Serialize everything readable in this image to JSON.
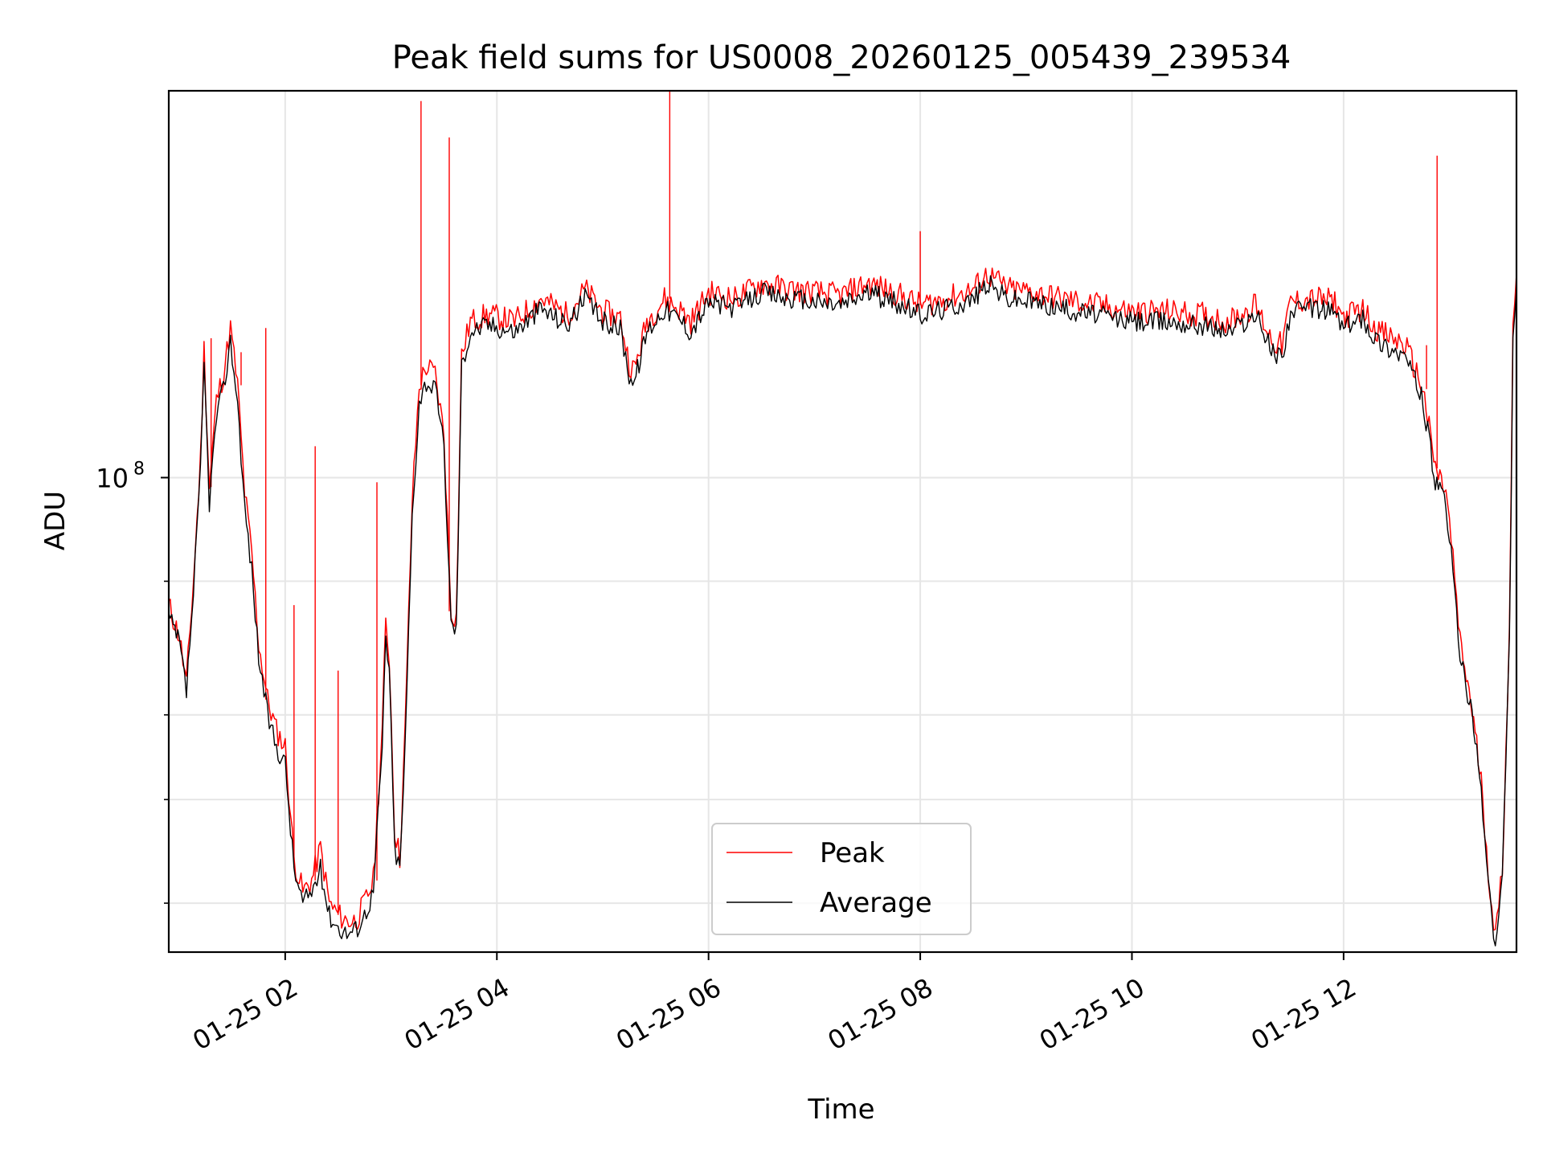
{
  "chart_data": {
    "type": "line",
    "title": "Peak field sums for US0008_20260125_005439_239534",
    "xlabel": "Time",
    "ylabel": "ADU",
    "x_scale": "time",
    "y_scale": "log",
    "xlim": [
      "2026-01-25 00:54",
      "2026-01-25 13:38"
    ],
    "ylim": [
      36000000,
      230000000
    ],
    "x_ticks": [
      {
        "value": "2026-01-25 02:00",
        "label": "01-25 02"
      },
      {
        "value": "2026-01-25 04:00",
        "label": "01-25 04"
      },
      {
        "value": "2026-01-25 06:00",
        "label": "01-25 06"
      },
      {
        "value": "2026-01-25 08:00",
        "label": "01-25 08"
      },
      {
        "value": "2026-01-25 10:00",
        "label": "01-25 10"
      },
      {
        "value": "2026-01-25 12:00",
        "label": "01-25 12"
      }
    ],
    "y_major_ticks": [
      {
        "value": 100000000,
        "label_base": "10",
        "label_exp": "8"
      }
    ],
    "y_minor_ticks": [
      40000000,
      50000000,
      60000000,
      80000000
    ],
    "grid": true,
    "legend_position": "lower center",
    "series": [
      {
        "name": "Peak",
        "color": "#ff0000",
        "points": [
          [
            "2026-01-25 00:54",
            76000000
          ],
          [
            "2026-01-25 01:00",
            71000000
          ],
          [
            "2026-01-25 01:04",
            64000000
          ],
          [
            "2026-01-25 01:08",
            80000000
          ],
          [
            "2026-01-25 01:12",
            104000000
          ],
          [
            "2026-01-25 01:14",
            132000000
          ],
          [
            "2026-01-25 01:17",
            98000000
          ],
          [
            "2026-01-25 01:21",
            118000000
          ],
          [
            "2026-01-25 01:25",
            125000000
          ],
          [
            "2026-01-25 01:29",
            138000000
          ],
          [
            "2026-01-25 01:33",
            122000000
          ],
          [
            "2026-01-25 01:37",
            97000000
          ],
          [
            "2026-01-25 01:41",
            85000000
          ],
          [
            "2026-01-25 01:45",
            70000000
          ],
          [
            "2026-01-25 01:50",
            62000000
          ],
          [
            "2026-01-25 01:55",
            58000000
          ],
          [
            "2026-01-25 02:00",
            56000000
          ],
          [
            "2026-01-25 02:05",
            44000000
          ],
          [
            "2026-01-25 02:10",
            41000000
          ],
          [
            "2026-01-25 02:15",
            42000000
          ],
          [
            "2026-01-25 02:20",
            45000000
          ],
          [
            "2026-01-25 02:25",
            40000000
          ],
          [
            "2026-01-25 02:30",
            39000000
          ],
          [
            "2026-01-25 02:35",
            38500000
          ],
          [
            "2026-01-25 02:40",
            38500000
          ],
          [
            "2026-01-25 02:45",
            40000000
          ],
          [
            "2026-01-25 02:50",
            42000000
          ],
          [
            "2026-01-25 02:55",
            58000000
          ],
          [
            "2026-01-25 02:57",
            73000000
          ],
          [
            "2026-01-25 02:59",
            68000000
          ],
          [
            "2026-01-25 03:02",
            47000000
          ],
          [
            "2026-01-25 03:05",
            44000000
          ],
          [
            "2026-01-25 03:08",
            58000000
          ],
          [
            "2026-01-25 03:12",
            95000000
          ],
          [
            "2026-01-25 03:16",
            122000000
          ],
          [
            "2026-01-25 03:20",
            127000000
          ],
          [
            "2026-01-25 03:25",
            125000000
          ],
          [
            "2026-01-25 03:30",
            110000000
          ],
          [
            "2026-01-25 03:34",
            75000000
          ],
          [
            "2026-01-25 03:37",
            74000000
          ],
          [
            "2026-01-25 03:40",
            130000000
          ],
          [
            "2026-01-25 03:45",
            140000000
          ],
          [
            "2026-01-25 03:55",
            142000000
          ],
          [
            "2026-01-25 04:10",
            140000000
          ],
          [
            "2026-01-25 04:25",
            147000000
          ],
          [
            "2026-01-25 04:40",
            142000000
          ],
          [
            "2026-01-25 04:50",
            150000000
          ],
          [
            "2026-01-25 05:00",
            143000000
          ],
          [
            "2026-01-25 05:10",
            141000000
          ],
          [
            "2026-01-25 05:15",
            128000000
          ],
          [
            "2026-01-25 05:18",
            126000000
          ],
          [
            "2026-01-25 05:25",
            140000000
          ],
          [
            "2026-01-25 05:35",
            147000000
          ],
          [
            "2026-01-25 05:45",
            143000000
          ],
          [
            "2026-01-25 05:50",
            140000000
          ],
          [
            "2026-01-25 06:00",
            149000000
          ],
          [
            "2026-01-25 06:15",
            147000000
          ],
          [
            "2026-01-25 06:30",
            152000000
          ],
          [
            "2026-01-25 06:45",
            150000000
          ],
          [
            "2026-01-25 07:00",
            149000000
          ],
          [
            "2026-01-25 07:15",
            148000000
          ],
          [
            "2026-01-25 07:30",
            152000000
          ],
          [
            "2026-01-25 07:45",
            149000000
          ],
          [
            "2026-01-25 08:00",
            145000000
          ],
          [
            "2026-01-25 08:15",
            147000000
          ],
          [
            "2026-01-25 08:30",
            150000000
          ],
          [
            "2026-01-25 08:38",
            155000000
          ],
          [
            "2026-01-25 08:50",
            150000000
          ],
          [
            "2026-01-25 09:05",
            149000000
          ],
          [
            "2026-01-25 09:20",
            147000000
          ],
          [
            "2026-01-25 09:40",
            145000000
          ],
          [
            "2026-01-25 10:00",
            143000000
          ],
          [
            "2026-01-25 10:20",
            143000000
          ],
          [
            "2026-01-25 10:40",
            142000000
          ],
          [
            "2026-01-25 10:55",
            140000000
          ],
          [
            "2026-01-25 11:10",
            145000000
          ],
          [
            "2026-01-25 11:20",
            134000000
          ],
          [
            "2026-01-25 11:25",
            133000000
          ],
          [
            "2026-01-25 11:30",
            146000000
          ],
          [
            "2026-01-25 11:45",
            147000000
          ],
          [
            "2026-01-25 11:55",
            146000000
          ],
          [
            "2026-01-25 12:00",
            141000000
          ],
          [
            "2026-01-25 12:10",
            144000000
          ],
          [
            "2026-01-25 12:20",
            137000000
          ],
          [
            "2026-01-25 12:35",
            133000000
          ],
          [
            "2026-01-25 12:45",
            121000000
          ],
          [
            "2026-01-25 12:52",
            102000000
          ],
          [
            "2026-01-25 12:58",
            97000000
          ],
          [
            "2026-01-25 13:02",
            84000000
          ],
          [
            "2026-01-25 13:06",
            70000000
          ],
          [
            "2026-01-25 13:12",
            62000000
          ],
          [
            "2026-01-25 13:18",
            52000000
          ],
          [
            "2026-01-25 13:22",
            43000000
          ],
          [
            "2026-01-25 13:26",
            37000000
          ],
          [
            "2026-01-25 13:30",
            43000000
          ],
          [
            "2026-01-25 13:34",
            72000000
          ],
          [
            "2026-01-25 13:36",
            137000000
          ],
          [
            "2026-01-25 13:38",
            155000000
          ]
        ],
        "spikes": [
          [
            "2026-01-25 01:14",
            130000000
          ],
          [
            "2026-01-25 01:18",
            135000000
          ],
          [
            "2026-01-25 01:35",
            131000000
          ],
          [
            "2026-01-25 01:49",
            138000000
          ],
          [
            "2026-01-25 02:05",
            76000000
          ],
          [
            "2026-01-25 02:17",
            107000000
          ],
          [
            "2026-01-25 02:30",
            66000000
          ],
          [
            "2026-01-25 02:52",
            99000000
          ],
          [
            "2026-01-25 03:17",
            225000000
          ],
          [
            "2026-01-25 03:33",
            208000000
          ],
          [
            "2026-01-25 05:38",
            235000000
          ],
          [
            "2026-01-25 08:00",
            170000000
          ],
          [
            "2026-01-25 12:53",
            200000000
          ],
          [
            "2026-01-25 12:47",
            133000000
          ]
        ]
      },
      {
        "name": "Average",
        "color": "#000000",
        "points": [
          [
            "2026-01-25 00:54",
            74000000
          ],
          [
            "2026-01-25 01:00",
            70000000
          ],
          [
            "2026-01-25 01:04",
            63000000
          ],
          [
            "2026-01-25 01:08",
            78000000
          ],
          [
            "2026-01-25 01:12",
            101000000
          ],
          [
            "2026-01-25 01:14",
            128000000
          ],
          [
            "2026-01-25 01:17",
            95000000
          ],
          [
            "2026-01-25 01:21",
            114000000
          ],
          [
            "2026-01-25 01:25",
            121000000
          ],
          [
            "2026-01-25 01:29",
            134000000
          ],
          [
            "2026-01-25 01:33",
            118000000
          ],
          [
            "2026-01-25 01:37",
            94000000
          ],
          [
            "2026-01-25 01:41",
            82000000
          ],
          [
            "2026-01-25 01:45",
            68000000
          ],
          [
            "2026-01-25 01:50",
            60000000
          ],
          [
            "2026-01-25 01:55",
            56000000
          ],
          [
            "2026-01-25 02:00",
            54000000
          ],
          [
            "2026-01-25 02:05",
            43000000
          ],
          [
            "2026-01-25 02:10",
            40000000
          ],
          [
            "2026-01-25 02:15",
            41000000
          ],
          [
            "2026-01-25 02:20",
            43000000
          ],
          [
            "2026-01-25 02:25",
            39000000
          ],
          [
            "2026-01-25 02:30",
            38000000
          ],
          [
            "2026-01-25 02:35",
            37500000
          ],
          [
            "2026-01-25 02:40",
            37800000
          ],
          [
            "2026-01-25 02:45",
            39000000
          ],
          [
            "2026-01-25 02:50",
            41000000
          ],
          [
            "2026-01-25 02:55",
            56000000
          ],
          [
            "2026-01-25 02:57",
            71000000
          ],
          [
            "2026-01-25 02:59",
            66000000
          ],
          [
            "2026-01-25 03:02",
            45000000
          ],
          [
            "2026-01-25 03:05",
            43000000
          ],
          [
            "2026-01-25 03:08",
            56000000
          ],
          [
            "2026-01-25 03:12",
            92000000
          ],
          [
            "2026-01-25 03:16",
            118000000
          ],
          [
            "2026-01-25 03:20",
            123000000
          ],
          [
            "2026-01-25 03:25",
            121000000
          ],
          [
            "2026-01-25 03:30",
            107000000
          ],
          [
            "2026-01-25 03:34",
            73000000
          ],
          [
            "2026-01-25 03:37",
            72000000
          ],
          [
            "2026-01-25 03:40",
            127000000
          ],
          [
            "2026-01-25 03:45",
            137000000
          ],
          [
            "2026-01-25 03:55",
            139000000
          ],
          [
            "2026-01-25 04:10",
            137000000
          ],
          [
            "2026-01-25 04:25",
            144000000
          ],
          [
            "2026-01-25 04:40",
            139000000
          ],
          [
            "2026-01-25 04:50",
            147000000
          ],
          [
            "2026-01-25 05:00",
            140000000
          ],
          [
            "2026-01-25 05:10",
            138000000
          ],
          [
            "2026-01-25 05:15",
            125000000
          ],
          [
            "2026-01-25 05:18",
            123000000
          ],
          [
            "2026-01-25 05:25",
            137000000
          ],
          [
            "2026-01-25 05:35",
            144000000
          ],
          [
            "2026-01-25 05:45",
            140000000
          ],
          [
            "2026-01-25 05:50",
            137000000
          ],
          [
            "2026-01-25 06:00",
            146000000
          ],
          [
            "2026-01-25 06:15",
            144000000
          ],
          [
            "2026-01-25 06:30",
            149000000
          ],
          [
            "2026-01-25 06:45",
            147000000
          ],
          [
            "2026-01-25 07:00",
            146000000
          ],
          [
            "2026-01-25 07:15",
            145000000
          ],
          [
            "2026-01-25 07:30",
            149000000
          ],
          [
            "2026-01-25 07:45",
            146000000
          ],
          [
            "2026-01-25 08:00",
            142000000
          ],
          [
            "2026-01-25 08:15",
            144000000
          ],
          [
            "2026-01-25 08:30",
            147000000
          ],
          [
            "2026-01-25 08:38",
            152000000
          ],
          [
            "2026-01-25 08:50",
            147000000
          ],
          [
            "2026-01-25 09:05",
            146000000
          ],
          [
            "2026-01-25 09:20",
            144000000
          ],
          [
            "2026-01-25 09:40",
            142000000
          ],
          [
            "2026-01-25 10:00",
            140000000
          ],
          [
            "2026-01-25 10:20",
            140000000
          ],
          [
            "2026-01-25 10:40",
            139000000
          ],
          [
            "2026-01-25 10:55",
            137000000
          ],
          [
            "2026-01-25 11:10",
            142000000
          ],
          [
            "2026-01-25 11:20",
            131000000
          ],
          [
            "2026-01-25 11:25",
            130000000
          ],
          [
            "2026-01-25 11:30",
            143000000
          ],
          [
            "2026-01-25 11:45",
            144000000
          ],
          [
            "2026-01-25 11:55",
            143000000
          ],
          [
            "2026-01-25 12:00",
            138000000
          ],
          [
            "2026-01-25 12:10",
            141000000
          ],
          [
            "2026-01-25 12:20",
            134000000
          ],
          [
            "2026-01-25 12:35",
            130000000
          ],
          [
            "2026-01-25 12:45",
            118000000
          ],
          [
            "2026-01-25 12:52",
            99000000
          ],
          [
            "2026-01-25 12:58",
            94000000
          ],
          [
            "2026-01-25 13:02",
            82000000
          ],
          [
            "2026-01-25 13:06",
            68000000
          ],
          [
            "2026-01-25 13:12",
            61000000
          ],
          [
            "2026-01-25 13:18",
            51000000
          ],
          [
            "2026-01-25 13:22",
            42000000
          ],
          [
            "2026-01-25 13:26",
            36200000
          ],
          [
            "2026-01-25 13:30",
            42000000
          ],
          [
            "2026-01-25 13:34",
            70000000
          ],
          [
            "2026-01-25 13:36",
            133000000
          ],
          [
            "2026-01-25 13:38",
            150000000
          ]
        ]
      }
    ]
  }
}
